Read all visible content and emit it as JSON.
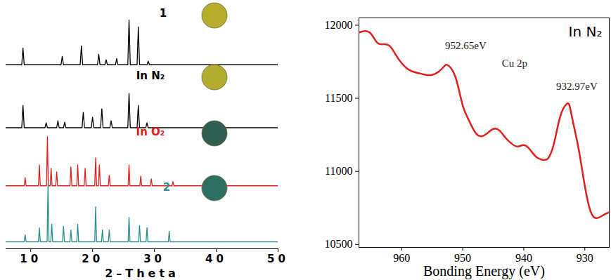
{
  "chart_data": [
    {
      "type": "line",
      "xlabel": "2–Theta",
      "xlim": [
        6,
        50
      ],
      "xticks": [
        10,
        20,
        30,
        40,
        50
      ],
      "ylim": [
        0,
        345
      ],
      "tick_labels": "x",
      "series": [
        {
          "name": "1",
          "color": "#000000",
          "x": [
            6,
            8.55,
            8.75,
            8.95,
            14.9,
            15.1,
            15.3,
            18,
            18.2,
            18.4,
            20.8,
            21,
            21.2,
            22,
            22.2,
            22.4,
            23.7,
            23.9,
            24.1,
            25.7,
            25.9,
            26.1,
            27.2,
            27.4,
            27.6,
            28.8,
            29,
            29.2,
            50
          ],
          "values": [
            263,
            263,
            287,
            263,
            263,
            275,
            263,
            263,
            290,
            263,
            263,
            278,
            263,
            263,
            270,
            263,
            263,
            272,
            263,
            263,
            327,
            263,
            263,
            317,
            263,
            263,
            268,
            263,
            263
          ]
        },
        {
          "name": "In N₂",
          "color": "#000000",
          "x": [
            6,
            8.55,
            8.75,
            8.95,
            12.3,
            12.5,
            12.7,
            14.2,
            14.4,
            14.6,
            15.3,
            15.5,
            15.7,
            18.3,
            18.5,
            18.7,
            19.8,
            20,
            20.2,
            21.3,
            21.5,
            21.7,
            22.8,
            23,
            23.2,
            25.7,
            25.9,
            26.1,
            27.2,
            27.4,
            27.6,
            28.6,
            28.8,
            29,
            50
          ],
          "values": [
            173,
            173,
            205,
            173,
            173,
            180,
            173,
            173,
            183,
            173,
            173,
            181,
            173,
            173,
            195,
            173,
            173,
            188,
            173,
            173,
            200,
            173,
            173,
            183,
            173,
            173,
            222,
            173,
            173,
            205,
            173,
            173,
            180,
            173,
            173
          ]
        },
        {
          "name": "In O₂",
          "color": "#e0201c",
          "x": [
            6,
            8.95,
            9.1,
            9.25,
            11.25,
            11.4,
            11.55,
            12.55,
            12.7,
            12.85,
            13.15,
            13.3,
            13.45,
            14.05,
            14.2,
            14.35,
            16.35,
            16.5,
            16.65,
            17.45,
            17.6,
            17.75,
            18.65,
            18.8,
            18.95,
            20.35,
            20.5,
            20.65,
            20.95,
            21.1,
            21.25,
            22.55,
            22.7,
            22.85,
            25.75,
            25.9,
            26.05,
            27.65,
            27.8,
            27.95,
            29.35,
            29.5,
            29.65,
            32.85,
            33,
            33.15,
            50
          ],
          "values": [
            90,
            90,
            102,
            90,
            90,
            120,
            90,
            90,
            160,
            90,
            90,
            115,
            90,
            90,
            110,
            90,
            90,
            117,
            90,
            90,
            120,
            90,
            90,
            115,
            90,
            90,
            130,
            90,
            90,
            120,
            90,
            90,
            105,
            90,
            90,
            120,
            90,
            90,
            104,
            90,
            90,
            100,
            90,
            90,
            96,
            90,
            90
          ]
        },
        {
          "name": "2",
          "color": "#2a8f8f",
          "x": [
            6,
            8.95,
            9.1,
            9.25,
            11.25,
            11.4,
            11.55,
            12.65,
            12.8,
            12.95,
            13.25,
            13.4,
            13.55,
            15.15,
            15.3,
            15.45,
            16.35,
            16.5,
            16.65,
            17.45,
            17.6,
            17.75,
            20.35,
            20.5,
            20.65,
            21.45,
            21.6,
            21.75,
            22.55,
            22.7,
            22.85,
            25.75,
            25.9,
            26.05,
            27.45,
            27.6,
            27.75,
            28.65,
            28.8,
            28.95,
            32.25,
            32.4,
            32.55,
            50
          ],
          "values": [
            10,
            10,
            20,
            10,
            10,
            30,
            10,
            10,
            93,
            10,
            10,
            35,
            10,
            10,
            32,
            10,
            10,
            27,
            10,
            10,
            35,
            10,
            10,
            60,
            10,
            10,
            27,
            10,
            10,
            27,
            10,
            10,
            45,
            10,
            10,
            33,
            10,
            10,
            30,
            10,
            10,
            25,
            10,
            10
          ]
        }
      ]
    },
    {
      "type": "line",
      "title": "In N₂",
      "xlabel": "Bonding Energy (eV)",
      "xlim": [
        967,
        926
      ],
      "xticks": [
        960,
        950,
        940,
        930
      ],
      "ylim": [
        10480,
        12050
      ],
      "yticks": [
        10500,
        11000,
        11500,
        12000
      ],
      "series": [
        {
          "color": "#e0201c",
          "x": [
            967,
            966,
            965,
            964,
            963,
            962,
            961,
            960,
            959,
            958,
            957,
            956,
            955,
            954,
            953,
            952.65,
            952,
            951,
            950,
            949,
            948,
            947,
            946,
            945,
            944,
            943,
            942,
            941,
            940,
            939,
            938,
            937,
            936,
            935,
            934,
            933,
            932.5,
            932,
            931,
            930,
            929,
            928,
            927,
            926
          ],
          "values": [
            11950,
            11960,
            11940,
            11880,
            11870,
            11860,
            11800,
            11740,
            11700,
            11680,
            11670,
            11660,
            11660,
            11680,
            11720,
            11730,
            11710,
            11620,
            11450,
            11350,
            11270,
            11240,
            11260,
            11290,
            11280,
            11230,
            11190,
            11170,
            11180,
            11150,
            11100,
            11080,
            11090,
            11200,
            11380,
            11460,
            11450,
            11350,
            11150,
            10900,
            10720,
            10680,
            10700,
            10720
          ]
        }
      ],
      "annotations": [
        {
          "text": "952.65eV",
          "x": 949.5,
          "y": 11860
        },
        {
          "text": "Cu 2p",
          "x": 941.5,
          "y": 11740
        },
        {
          "text": "932.97eV",
          "x": 931.3,
          "y": 11580
        }
      ]
    }
  ]
}
